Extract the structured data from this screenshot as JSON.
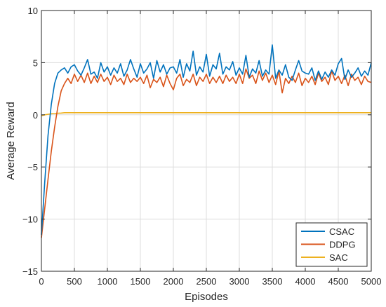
{
  "chart_data": {
    "type": "line",
    "title": "",
    "xlabel": "Episodes",
    "ylabel": "Average Reward",
    "xlim": [
      0,
      5000
    ],
    "ylim": [
      -15,
      10
    ],
    "xticks": [
      0,
      500,
      1000,
      1500,
      2000,
      2500,
      3000,
      3500,
      4000,
      4500,
      5000
    ],
    "yticks": [
      -15,
      -10,
      -5,
      0,
      5,
      10
    ],
    "grid": true,
    "legend_position": "bottom-right",
    "series": [
      {
        "name": "CSAC",
        "color": "#0072BD",
        "x": [
          0,
          50,
          100,
          150,
          200,
          250,
          300,
          350,
          400,
          450,
          500,
          550,
          600,
          650,
          700,
          750,
          800,
          850,
          900,
          950,
          1000,
          1050,
          1100,
          1150,
          1200,
          1250,
          1300,
          1350,
          1400,
          1450,
          1500,
          1550,
          1600,
          1650,
          1700,
          1750,
          1800,
          1850,
          1900,
          1950,
          2000,
          2050,
          2100,
          2150,
          2200,
          2250,
          2300,
          2350,
          2400,
          2450,
          2500,
          2550,
          2600,
          2650,
          2700,
          2750,
          2800,
          2850,
          2900,
          2950,
          3000,
          3050,
          3100,
          3150,
          3200,
          3250,
          3300,
          3350,
          3400,
          3450,
          3500,
          3550,
          3600,
          3650,
          3700,
          3750,
          3800,
          3850,
          3900,
          3950,
          4000,
          4050,
          4100,
          4150,
          4200,
          4250,
          4300,
          4350,
          4400,
          4450,
          4500,
          4550,
          4600,
          4650,
          4700,
          4750,
          4800,
          4850,
          4900,
          4950,
          5000
        ],
        "y": [
          -11.5,
          -6.5,
          -2.0,
          1.0,
          3.0,
          4.0,
          4.3,
          4.5,
          4.0,
          4.6,
          4.8,
          4.2,
          3.8,
          4.5,
          5.3,
          3.9,
          4.1,
          3.5,
          5.0,
          4.1,
          4.6,
          3.8,
          4.5,
          4.0,
          4.9,
          3.7,
          4.3,
          5.3,
          4.4,
          3.6,
          4.9,
          4.0,
          4.4,
          5.0,
          3.5,
          5.2,
          4.1,
          4.8,
          3.9,
          4.5,
          4.6,
          4.0,
          5.3,
          3.6,
          4.9,
          4.2,
          6.1,
          3.8,
          4.6,
          4.1,
          5.8,
          3.7,
          4.8,
          4.4,
          5.9,
          3.9,
          4.6,
          4.3,
          5.1,
          3.8,
          4.5,
          3.9,
          5.7,
          3.6,
          4.4,
          4.0,
          5.2,
          3.7,
          4.3,
          3.9,
          6.7,
          3.5,
          4.3,
          3.8,
          4.8,
          3.6,
          3.3,
          4.3,
          5.2,
          4.2,
          4.0,
          3.9,
          4.5,
          3.3,
          4.2,
          3.4,
          4.1,
          3.6,
          4.3,
          3.8,
          4.9,
          5.4,
          3.4,
          4.3,
          3.6,
          4.0,
          4.5,
          3.7,
          4.2,
          3.8,
          5.0
        ]
      },
      {
        "name": "DDPG",
        "color": "#D95319",
        "x": [
          0,
          50,
          100,
          150,
          200,
          250,
          300,
          350,
          400,
          450,
          500,
          550,
          600,
          650,
          700,
          750,
          800,
          850,
          900,
          950,
          1000,
          1050,
          1100,
          1150,
          1200,
          1250,
          1300,
          1350,
          1400,
          1450,
          1500,
          1550,
          1600,
          1650,
          1700,
          1750,
          1800,
          1850,
          1900,
          1950,
          2000,
          2050,
          2100,
          2150,
          2200,
          2250,
          2300,
          2350,
          2400,
          2450,
          2500,
          2550,
          2600,
          2650,
          2700,
          2750,
          2800,
          2850,
          2900,
          2950,
          3000,
          3050,
          3100,
          3150,
          3200,
          3250,
          3300,
          3350,
          3400,
          3450,
          3500,
          3550,
          3600,
          3650,
          3700,
          3750,
          3800,
          3850,
          3900,
          3950,
          4000,
          4050,
          4100,
          4150,
          4200,
          4250,
          4300,
          4350,
          4400,
          4450,
          4500,
          4550,
          4600,
          4650,
          4700,
          4750,
          4800,
          4850,
          4900,
          4950,
          5000
        ],
        "y": [
          -11.8,
          -9.0,
          -6.2,
          -3.5,
          -1.2,
          0.8,
          2.3,
          3.0,
          3.5,
          3.0,
          3.9,
          3.2,
          3.8,
          3.1,
          4.0,
          3.0,
          3.7,
          3.1,
          3.9,
          3.2,
          3.6,
          2.9,
          3.8,
          3.2,
          3.5,
          2.9,
          3.9,
          3.1,
          3.5,
          3.2,
          3.6,
          3.0,
          3.8,
          2.6,
          3.4,
          3.1,
          3.6,
          2.7,
          3.8,
          3.0,
          2.4,
          3.5,
          3.9,
          2.8,
          3.4,
          3.1,
          3.9,
          2.8,
          3.6,
          3.2,
          3.9,
          3.0,
          3.6,
          3.1,
          3.7,
          3.0,
          3.8,
          3.2,
          3.6,
          3.0,
          3.9,
          3.0,
          4.4,
          3.5,
          3.8,
          3.0,
          4.2,
          3.3,
          4.0,
          3.1,
          3.8,
          2.9,
          4.2,
          2.1,
          3.5,
          3.0,
          3.7,
          3.1,
          4.0,
          2.8,
          3.5,
          3.1,
          3.7,
          2.9,
          4.0,
          3.2,
          3.6,
          2.9,
          4.2,
          3.3,
          3.7,
          3.0,
          3.8,
          2.8,
          3.9,
          3.3,
          3.6,
          2.9,
          3.7,
          3.2,
          3.1
        ]
      },
      {
        "name": "SAC",
        "color": "#EDB120",
        "x": [
          0,
          50,
          100,
          150,
          200,
          250,
          300,
          350,
          400,
          500,
          1000,
          1500,
          2000,
          2500,
          3000,
          3500,
          4000,
          4500,
          5000
        ],
        "y": [
          -0.1,
          0.0,
          0.05,
          0.1,
          0.12,
          0.15,
          0.17,
          0.2,
          0.2,
          0.2,
          0.2,
          0.2,
          0.2,
          0.2,
          0.2,
          0.2,
          0.2,
          0.2,
          0.2
        ]
      }
    ]
  }
}
